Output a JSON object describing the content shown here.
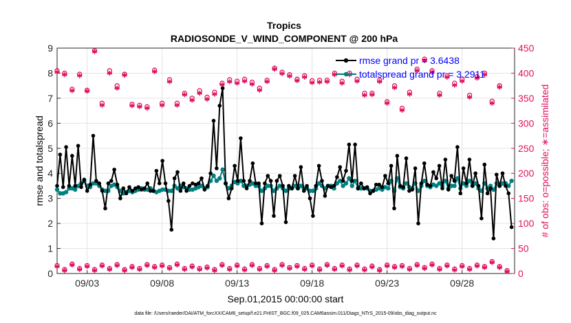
{
  "chart_data": {
    "type": "line",
    "title": "Tropics",
    "subtitle": "RADIOSONDE_V_WIND_COMPONENT @ 200 hPa",
    "xlabel": "Sep.01,2015 00:00:00 start",
    "ylabel_left": "rmse and totalspread",
    "ylabel_right": "# of obs: o=possible; ∗=assimilated",
    "footnote": "data file: /Users/raeder/DAI/ATM_forcXX/CAM6_setup/f.e21.FHIST_BGC.f09_025.CAM6assim.011/Diags_NTrS_2015-09/obs_diag_output.nc",
    "xlim": [
      1,
      31.5
    ],
    "ylim_left": [
      0,
      9
    ],
    "ylim_right": [
      0,
      450
    ],
    "yticks_left": [
      "0",
      "1",
      "2",
      "3",
      "4",
      "5",
      "6",
      "7",
      "8",
      "9"
    ],
    "yticks_right": [
      "0",
      "50",
      "100",
      "150",
      "200",
      "250",
      "300",
      "350",
      "400",
      "450"
    ],
    "xticks": [
      {
        "x": 3,
        "label": "09/03"
      },
      {
        "x": 8,
        "label": "09/08"
      },
      {
        "x": 13,
        "label": "09/13"
      },
      {
        "x": 18,
        "label": "09/18"
      },
      {
        "x": 23,
        "label": "09/23"
      },
      {
        "x": 28,
        "label": "09/28"
      }
    ],
    "grid": true,
    "colors": {
      "rmse": "#000000",
      "spread": "#008080",
      "obs": "#e0115f",
      "legend_text": "#0000ff"
    },
    "legend": {
      "rmse": "rmse grand pr = 3.6438",
      "spread": "totalspread grand pr = 3.2911",
      "placement": "top-right"
    },
    "rmse": [
      3.5,
      4.75,
      3.45,
      5.05,
      3.5,
      4.7,
      3.5,
      5.1,
      3.45,
      3.75,
      3.3,
      3.55,
      5.5,
      3.7,
      3.6,
      3.3,
      2.6,
      3.6,
      3.7,
      4.15,
      3.55,
      3.0,
      3.4,
      3.2,
      3.45,
      3.3,
      3.4,
      3.45,
      3.35,
      3.4,
      3.6,
      3.3,
      3.3,
      4.1,
      3.6,
      4.5,
      3.6,
      2.9,
      1.75,
      3.8,
      4.05,
      3.3,
      3.6,
      3.3,
      3.5,
      3.6,
      3.55,
      3.6,
      3.8,
      3.35,
      3.5,
      4.0,
      6.1,
      4.2,
      6.7,
      7.4,
      3.6,
      3.0,
      3.4,
      4.3,
      3.7,
      5.4,
      3.7,
      3.4,
      3.7,
      4.4,
      3.6,
      3.6,
      2.0,
      3.6,
      3.9,
      3.7,
      2.3,
      3.7,
      3.9,
      3.5,
      2.05,
      3.5,
      3.4,
      3.9,
      3.4,
      4.25,
      3.3,
      3.5,
      3.0,
      2.3,
      3.5,
      4.3,
      3.7,
      3.1,
      3.5,
      3.45,
      3.5,
      3.85,
      4.25,
      3.7,
      4.1,
      5.15,
      3.7,
      5.15,
      3.4,
      3.6,
      3.4,
      3.45,
      3.2,
      3.3,
      3.55,
      3.55,
      3.45,
      3.9,
      3.6,
      4.3,
      2.6,
      4.7,
      3.5,
      3.45,
      4.6,
      3.3,
      3.35,
      4.2,
      2.0,
      3.6,
      4.4,
      3.55,
      3.5,
      4.05,
      3.8,
      4.3,
      3.4,
      4.55,
      3.35,
      3.9,
      3.7,
      5.05,
      3.2,
      4.2,
      3.6,
      4.55,
      3.5,
      4.0,
      3.5,
      2.2,
      4.35,
      3.2,
      3.4,
      1.4,
      3.95,
      3.5,
      4.0,
      3.5,
      3.2,
      1.85
    ],
    "spread": [
      3.35,
      3.2,
      3.2,
      3.25,
      3.4,
      3.4,
      3.35,
      3.5,
      3.6,
      3.7,
      3.5,
      3.45,
      3.6,
      3.6,
      3.5,
      3.35,
      3.3,
      3.3,
      3.5,
      3.55,
      3.45,
      3.3,
      3.2,
      3.25,
      3.3,
      3.25,
      3.3,
      3.35,
      3.4,
      3.35,
      3.35,
      3.4,
      3.3,
      3.25,
      3.3,
      3.35,
      3.35,
      3.3,
      3.3,
      3.5,
      3.4,
      3.5,
      3.45,
      3.4,
      3.35,
      3.35,
      3.4,
      3.45,
      3.5,
      3.4,
      3.45,
      3.7,
      3.9,
      3.7,
      3.8,
      4.15,
      3.6,
      3.4,
      3.5,
      3.65,
      3.6,
      3.7,
      3.5,
      3.5,
      3.55,
      3.6,
      3.5,
      3.5,
      3.3,
      3.4,
      3.5,
      3.5,
      3.3,
      3.4,
      3.5,
      3.4,
      3.3,
      3.4,
      3.4,
      3.5,
      3.4,
      3.5,
      3.4,
      3.4,
      3.3,
      3.3,
      3.4,
      3.6,
      3.5,
      3.4,
      3.5,
      3.5,
      3.4,
      3.6,
      3.7,
      3.5,
      3.6,
      3.8,
      3.5,
      3.7,
      3.4,
      3.4,
      3.4,
      3.4,
      3.3,
      3.3,
      3.35,
      3.4,
      3.35,
      3.45,
      3.4,
      3.7,
      3.3,
      3.8,
      3.45,
      3.4,
      3.6,
      3.45,
      3.4,
      3.6,
      3.3,
      3.5,
      3.7,
      3.5,
      3.45,
      3.55,
      3.5,
      3.6,
      3.5,
      3.7,
      3.4,
      3.5,
      3.5,
      3.8,
      3.4,
      3.6,
      3.5,
      3.7,
      3.5,
      3.6,
      3.4,
      3.3,
      3.6,
      3.4,
      3.5,
      3.35,
      3.6,
      3.5,
      3.6,
      3.6,
      3.5,
      3.7
    ],
    "obs_possible_high": [
      [
        1,
        405
      ],
      [
        1.5,
        400
      ],
      [
        2,
        368
      ],
      [
        2.5,
        398
      ],
      [
        3,
        366
      ],
      [
        3.5,
        445
      ],
      [
        4,
        340
      ],
      [
        4.5,
        405
      ],
      [
        5,
        375
      ],
      [
        5.5,
        398
      ],
      [
        6,
        338
      ],
      [
        6.5,
        336
      ],
      [
        7,
        333
      ],
      [
        7.5,
        406
      ],
      [
        8,
        340
      ],
      [
        8.5,
        387
      ],
      [
        9,
        340
      ],
      [
        9.5,
        360
      ],
      [
        10,
        350
      ],
      [
        10.5,
        365
      ],
      [
        11,
        352
      ],
      [
        11.5,
        362
      ],
      [
        12,
        380
      ],
      [
        12.5,
        387
      ],
      [
        13,
        384
      ],
      [
        13.5,
        388
      ],
      [
        14,
        382
      ],
      [
        14.5,
        370
      ],
      [
        15,
        386
      ],
      [
        15.5,
        410
      ],
      [
        16,
        402
      ],
      [
        16.5,
        397
      ],
      [
        17,
        388
      ],
      [
        17.5,
        395
      ],
      [
        18,
        385
      ],
      [
        18.5,
        386
      ],
      [
        19,
        386
      ],
      [
        19.5,
        400
      ],
      [
        20,
        384
      ],
      [
        20.5,
        400
      ],
      [
        21,
        388
      ],
      [
        21.5,
        360
      ],
      [
        22,
        360
      ],
      [
        22.5,
        386
      ],
      [
        23,
        343
      ],
      [
        23.5,
        375
      ],
      [
        24,
        330
      ],
      [
        24.5,
        362
      ],
      [
        25,
        408
      ],
      [
        25.5,
        428
      ],
      [
        26,
        405
      ],
      [
        26.5,
        360
      ],
      [
        27,
        395
      ],
      [
        27.5,
        380
      ],
      [
        28,
        388
      ],
      [
        28.5,
        356
      ],
      [
        29,
        393
      ],
      [
        29.5,
        400
      ],
      [
        30,
        344
      ],
      [
        30.5,
        375
      ]
    ],
    "obs_assimilated_high": [
      [
        1,
        402
      ],
      [
        1.5,
        397
      ],
      [
        2,
        365
      ],
      [
        2.5,
        395
      ],
      [
        3,
        364
      ],
      [
        3.5,
        443
      ],
      [
        4,
        336
      ],
      [
        4.5,
        400
      ],
      [
        5,
        370
      ],
      [
        5.5,
        396
      ],
      [
        6,
        335
      ],
      [
        6.5,
        333
      ],
      [
        7,
        330
      ],
      [
        7.5,
        403
      ],
      [
        8,
        336
      ],
      [
        8.5,
        383
      ],
      [
        9,
        336
      ],
      [
        9.5,
        357
      ],
      [
        10,
        346
      ],
      [
        10.5,
        360
      ],
      [
        11,
        348
      ],
      [
        11.5,
        358
      ],
      [
        12,
        377
      ],
      [
        12.5,
        383
      ],
      [
        13,
        380
      ],
      [
        13.5,
        384
      ],
      [
        14,
        378
      ],
      [
        14.5,
        366
      ],
      [
        15,
        383
      ],
      [
        15.5,
        408
      ],
      [
        16,
        399
      ],
      [
        16.5,
        394
      ],
      [
        17,
        385
      ],
      [
        17.5,
        392
      ],
      [
        18,
        381
      ],
      [
        18.5,
        382
      ],
      [
        19,
        383
      ],
      [
        19.5,
        397
      ],
      [
        20,
        380
      ],
      [
        20.5,
        397
      ],
      [
        21,
        384
      ],
      [
        21.5,
        356
      ],
      [
        22,
        357
      ],
      [
        22.5,
        383
      ],
      [
        23,
        340
      ],
      [
        23.5,
        371
      ],
      [
        24,
        326
      ],
      [
        24.5,
        358
      ],
      [
        25,
        405
      ],
      [
        25.5,
        425
      ],
      [
        26,
        402
      ],
      [
        26.5,
        356
      ],
      [
        27,
        392
      ],
      [
        27.5,
        376
      ],
      [
        28,
        384
      ],
      [
        28.5,
        352
      ],
      [
        29,
        390
      ],
      [
        29.5,
        397
      ],
      [
        30,
        340
      ],
      [
        30.5,
        372
      ]
    ],
    "obs_possible_low": [
      [
        1,
        16
      ],
      [
        1.5,
        8
      ],
      [
        2,
        19
      ],
      [
        2.5,
        10
      ],
      [
        3,
        16
      ],
      [
        3.5,
        8
      ],
      [
        4,
        17
      ],
      [
        4.5,
        10
      ],
      [
        5,
        18
      ],
      [
        5.5,
        8
      ],
      [
        6,
        14
      ],
      [
        6.5,
        10
      ],
      [
        7,
        18
      ],
      [
        7.5,
        14
      ],
      [
        8,
        17
      ],
      [
        8.5,
        12
      ],
      [
        9,
        19
      ],
      [
        9.5,
        10
      ],
      [
        10,
        15
      ],
      [
        10.5,
        10
      ],
      [
        11,
        13
      ],
      [
        11.5,
        8
      ],
      [
        12,
        18
      ],
      [
        12.5,
        10
      ],
      [
        13,
        17
      ],
      [
        13.5,
        9
      ],
      [
        14,
        18
      ],
      [
        14.5,
        10
      ],
      [
        15,
        16
      ],
      [
        15.5,
        8
      ],
      [
        16,
        18
      ],
      [
        16.5,
        12
      ],
      [
        17,
        16
      ],
      [
        17.5,
        10
      ],
      [
        18,
        17
      ],
      [
        18.5,
        9
      ],
      [
        19,
        18
      ],
      [
        19.5,
        10
      ],
      [
        20,
        17
      ],
      [
        20.5,
        9
      ],
      [
        21,
        17
      ],
      [
        21.5,
        9
      ],
      [
        22,
        15
      ],
      [
        22.5,
        8
      ],
      [
        23,
        17
      ],
      [
        23.5,
        14
      ],
      [
        24,
        16
      ],
      [
        24.5,
        10
      ],
      [
        25,
        18
      ],
      [
        25.5,
        12
      ],
      [
        26,
        19
      ],
      [
        26.5,
        10
      ],
      [
        27,
        17
      ],
      [
        27.5,
        9
      ],
      [
        28,
        16
      ],
      [
        28.5,
        10
      ],
      [
        29,
        17
      ],
      [
        29.5,
        14
      ],
      [
        30,
        24
      ],
      [
        30.5,
        14
      ],
      [
        31,
        6
      ]
    ],
    "obs_assimilated_low": [
      [
        1,
        14
      ],
      [
        1.5,
        6
      ],
      [
        2,
        17
      ],
      [
        2.5,
        8
      ],
      [
        3,
        14
      ],
      [
        3.5,
        6
      ],
      [
        4,
        15
      ],
      [
        4.5,
        8
      ],
      [
        5,
        16
      ],
      [
        5.5,
        6
      ],
      [
        6,
        12
      ],
      [
        6.5,
        8
      ],
      [
        7,
        16
      ],
      [
        7.5,
        12
      ],
      [
        8,
        15
      ],
      [
        8.5,
        10
      ],
      [
        9,
        17
      ],
      [
        9.5,
        8
      ],
      [
        10,
        13
      ],
      [
        10.5,
        8
      ],
      [
        11,
        11
      ],
      [
        11.5,
        6
      ],
      [
        12,
        16
      ],
      [
        12.5,
        8
      ],
      [
        13,
        15
      ],
      [
        13.5,
        7
      ],
      [
        14,
        16
      ],
      [
        14.5,
        8
      ],
      [
        15,
        14
      ],
      [
        15.5,
        6
      ],
      [
        16,
        16
      ],
      [
        16.5,
        10
      ],
      [
        17,
        14
      ],
      [
        17.5,
        8
      ],
      [
        18,
        15
      ],
      [
        18.5,
        7
      ],
      [
        19,
        16
      ],
      [
        19.5,
        8
      ],
      [
        20,
        15
      ],
      [
        20.5,
        7
      ],
      [
        21,
        15
      ],
      [
        21.5,
        7
      ],
      [
        22,
        13
      ],
      [
        22.5,
        6
      ],
      [
        23,
        15
      ],
      [
        23.5,
        12
      ],
      [
        24,
        14
      ],
      [
        24.5,
        8
      ],
      [
        25,
        16
      ],
      [
        25.5,
        10
      ],
      [
        26,
        17
      ],
      [
        26.5,
        8
      ],
      [
        27,
        15
      ],
      [
        27.5,
        7
      ],
      [
        28,
        14
      ],
      [
        28.5,
        8
      ],
      [
        29,
        15
      ],
      [
        29.5,
        12
      ],
      [
        30,
        22
      ],
      [
        30.5,
        12
      ],
      [
        31,
        4
      ]
    ]
  }
}
